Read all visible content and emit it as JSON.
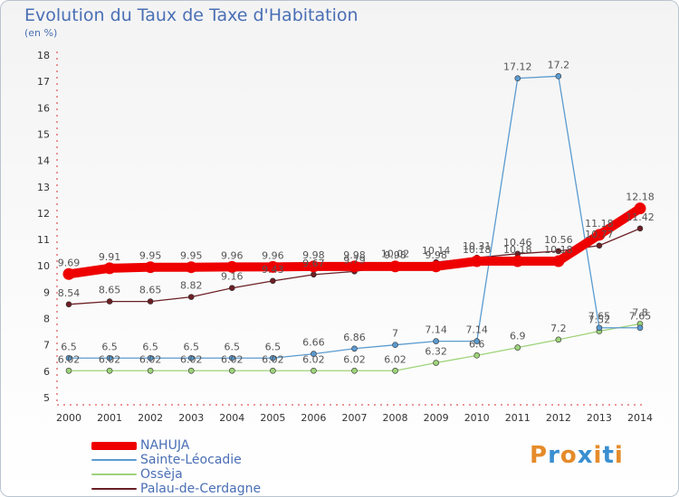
{
  "title": "Evolution du Taux de Taxe d'Habitation",
  "subtitle": "(en %)",
  "logo": {
    "text": "Proxiti",
    "colors": [
      "#e58b2a",
      "#3a8fd0",
      "#e58b2a",
      "#3a8fd0",
      "#e58b2a",
      "#3a8fd0",
      "#e58b2a"
    ]
  },
  "chart_data": {
    "type": "line",
    "x": [
      "2000",
      "2001",
      "2002",
      "2003",
      "2004",
      "2005",
      "2006",
      "2007",
      "2008",
      "2009",
      "2010",
      "2011",
      "2012",
      "2013",
      "2014"
    ],
    "ylim": [
      5,
      18
    ],
    "yticks": [
      "5",
      "6",
      "7",
      "8",
      "9",
      "10",
      "11",
      "12",
      "13",
      "14",
      "15",
      "16",
      "17",
      "18"
    ],
    "grid": false,
    "legend_position": "bottom-left",
    "series": [
      {
        "name": "Palau-de-Cerdagne",
        "color": "#6b1f24",
        "values": [
          8.54,
          8.65,
          8.65,
          8.82,
          9.16,
          9.43,
          9.67,
          9.79,
          10.02,
          10.14,
          10.31,
          10.46,
          10.56,
          10.77,
          11.42
        ],
        "labels": [
          "8.54",
          "8.65",
          "8.65",
          "8.82",
          "9.16",
          "9.43",
          "9.67",
          "9.79",
          "10.02",
          "10.14",
          "10.31",
          "10.46",
          "10.56",
          "10.77",
          "11.42"
        ]
      },
      {
        "name": "Ossèja",
        "color": "#9ed37a",
        "values": [
          6.02,
          6.02,
          6.02,
          6.02,
          6.02,
          6.02,
          6.02,
          6.02,
          6.02,
          6.32,
          6.6,
          6.9,
          7.2,
          7.52,
          7.8
        ],
        "labels": [
          "6.02",
          "6.02",
          "6.02",
          "6.02",
          "6.02",
          "6.02",
          "6.02",
          "6.02",
          "6.02",
          "6.32",
          "6.6",
          "6.9",
          "7.2",
          "7.52",
          "7.8"
        ]
      },
      {
        "name": "Sainte-Léocadie",
        "color": "#5b9bd0",
        "values": [
          6.5,
          6.5,
          6.5,
          6.5,
          6.5,
          6.5,
          6.66,
          6.86,
          7,
          7.14,
          7.14,
          17.12,
          17.2,
          7.65,
          7.65
        ],
        "labels": [
          "6.5",
          "6.5",
          "6.5",
          "6.5",
          "6.5",
          "6.5",
          "6.66",
          "6.86",
          "7",
          "7.14",
          "7.14",
          "17.12",
          "17.2",
          "7.65",
          "7.65"
        ]
      },
      {
        "name": "NAHUJA",
        "color": "#ee0000",
        "values": [
          9.69,
          9.91,
          9.95,
          9.95,
          9.96,
          9.96,
          9.98,
          9.98,
          9.98,
          9.98,
          10.18,
          10.18,
          10.18,
          11.18,
          12.18
        ],
        "labels": [
          "9.69",
          "9.91",
          "9.95",
          "9.95",
          "9.96",
          "9.96",
          "9.98",
          "9.98",
          "9.98",
          "9.98",
          "10.18",
          "10.18",
          "10.18",
          "11.18",
          "12.18"
        ]
      }
    ],
    "legend_order": [
      "NAHUJA",
      "Sainte-Léocadie",
      "Ossèja",
      "Palau-de-Cerdagne"
    ]
  }
}
